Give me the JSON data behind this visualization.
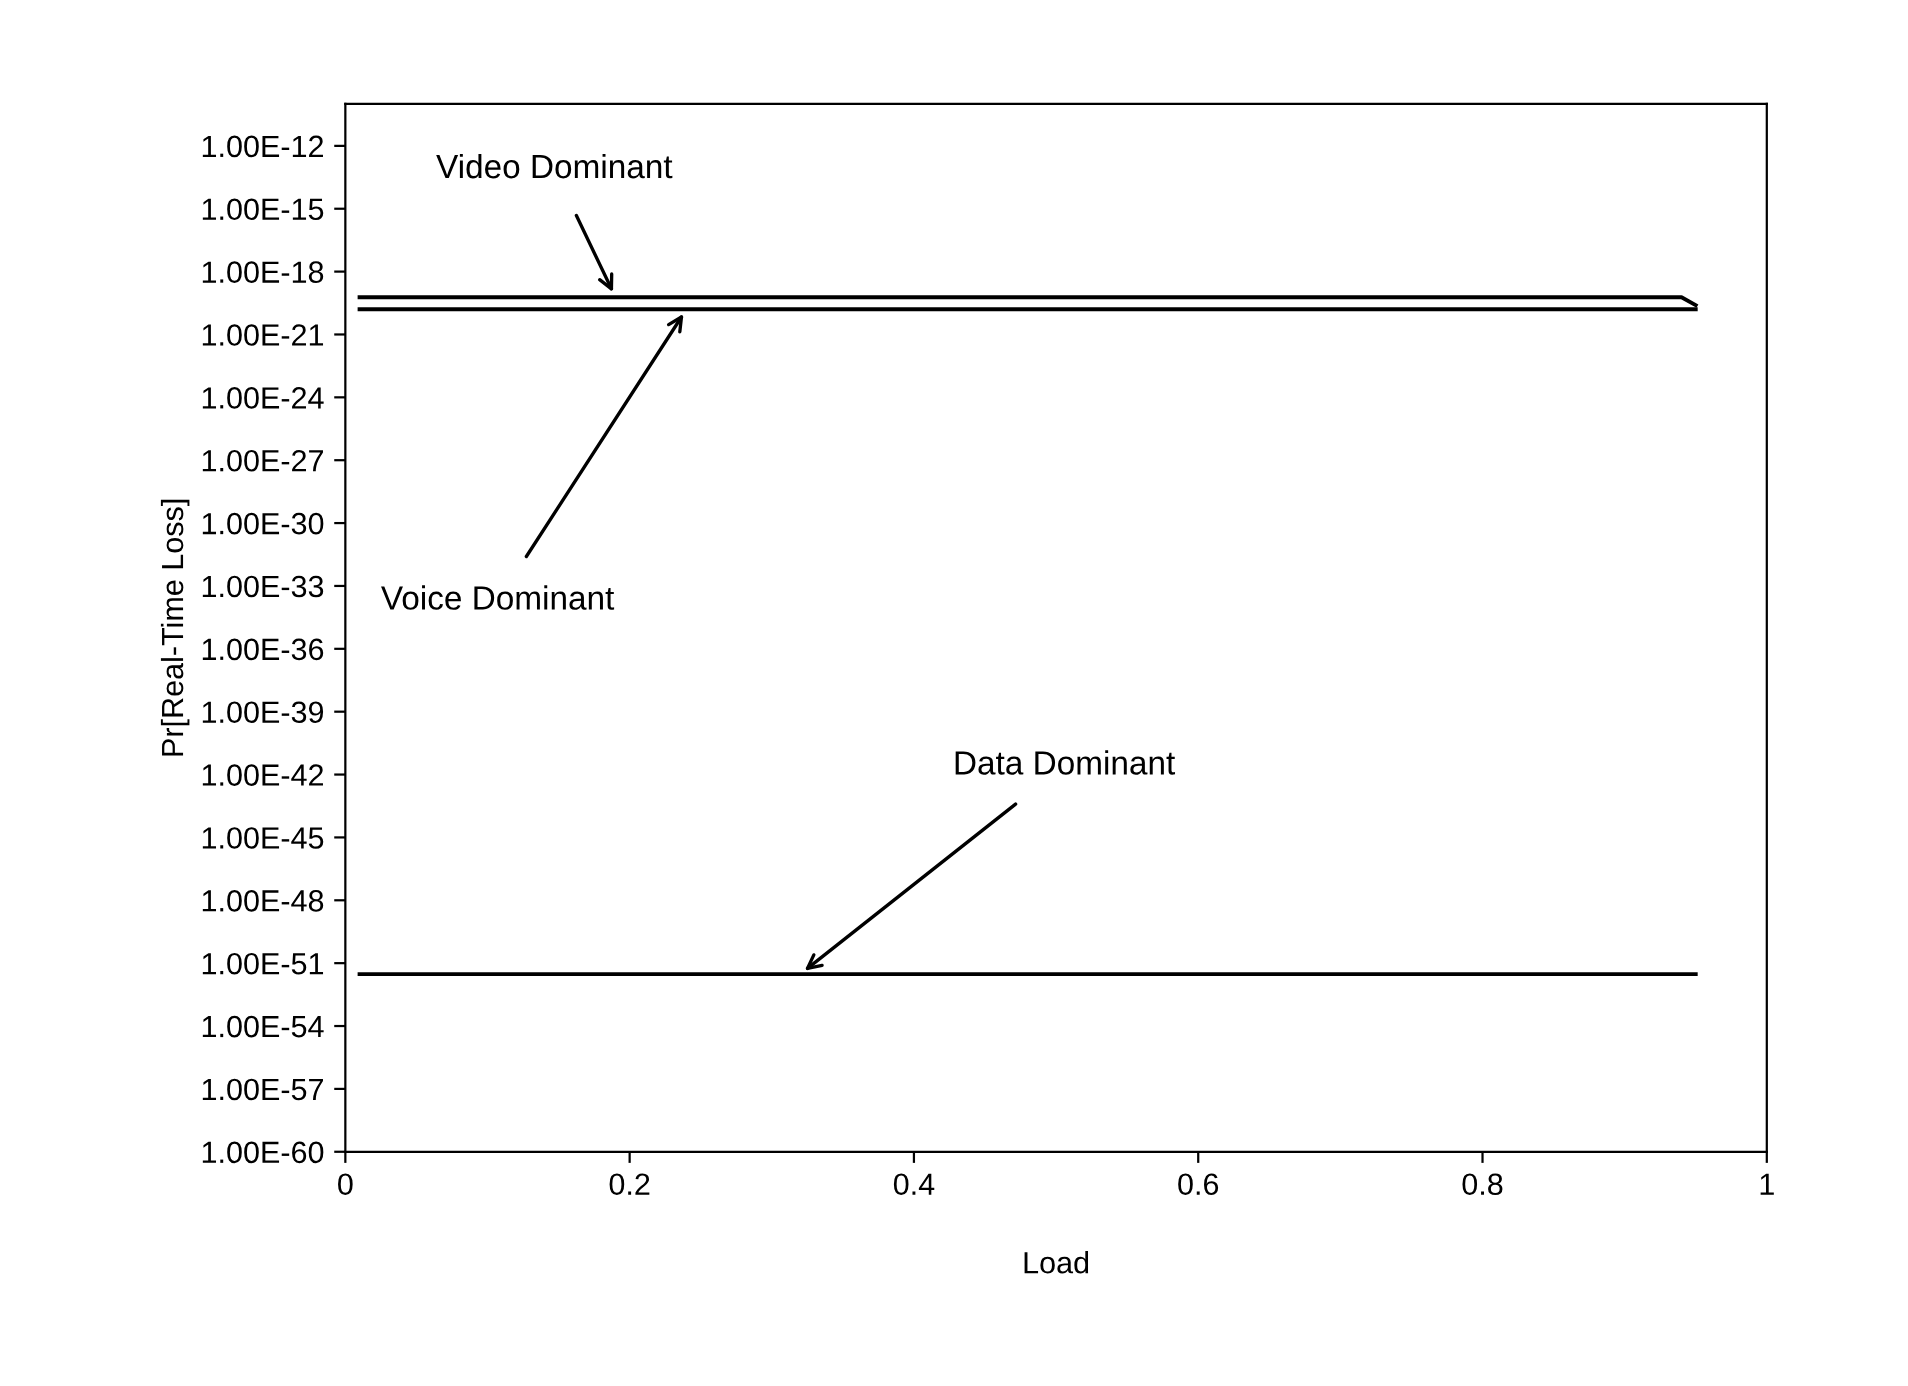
{
  "chart_data": {
    "type": "line",
    "xlabel": "Load",
    "ylabel": "Pr[Real-Time Loss]",
    "log": "y",
    "xlim": [
      0,
      1
    ],
    "xticks": [
      0,
      0.2,
      0.4,
      0.6,
      0.8,
      1
    ],
    "ylim": [
      1e-60,
      1e-10
    ],
    "yticks": [
      {
        "value": 1e-12,
        "label": "1.00E-12"
      },
      {
        "value": 1e-15,
        "label": "1.00E-15"
      },
      {
        "value": 1e-18,
        "label": "1.00E-18"
      },
      {
        "value": 1e-21,
        "label": "1.00E-21"
      },
      {
        "value": 1e-24,
        "label": "1.00E-24"
      },
      {
        "value": 1e-27,
        "label": "1.00E-27"
      },
      {
        "value": 1e-30,
        "label": "1.00E-30"
      },
      {
        "value": 1e-33,
        "label": "1.00E-33"
      },
      {
        "value": 1e-36,
        "label": "1.00E-36"
      },
      {
        "value": 1e-39,
        "label": "1.00E-39"
      },
      {
        "value": 1e-42,
        "label": "1.00E-42"
      },
      {
        "value": 1e-45,
        "label": "1.00E-45"
      },
      {
        "value": 1e-48,
        "label": "1.00E-48"
      },
      {
        "value": 1e-51,
        "label": "1.00E-51"
      },
      {
        "value": 1e-54,
        "label": "1.00E-54"
      },
      {
        "value": 1e-57,
        "label": "1.00E-57"
      },
      {
        "value": 1e-60,
        "label": "1.00E-60"
      }
    ],
    "grid": false,
    "legend": false,
    "marker": "none",
    "line_style": "solid",
    "series": [
      {
        "color": "#000000",
        "x": [
          0.01,
          0.94,
          0.95
        ],
        "values": [
          6e-20,
          6e-20,
          2.5e-20
        ]
      },
      {
        "color": "#000000",
        "x": [
          0.01,
          0.95
        ],
        "values": [
          1.6e-20,
          1.6e-20
        ]
      },
      {
        "color": "#000000",
        "x": [
          0.01,
          0.95
        ],
        "values": [
          3e-52,
          3e-52
        ]
      }
    ],
    "annotations": [
      {
        "text": "Video Dominant",
        "x": 0.19,
        "y": 6e-20
      },
      {
        "text": "Voice Dominant",
        "x": 0.24,
        "y": 1.6e-20
      },
      {
        "text": "Data Dominant",
        "x": 0.32,
        "y": 3e-52
      }
    ]
  }
}
